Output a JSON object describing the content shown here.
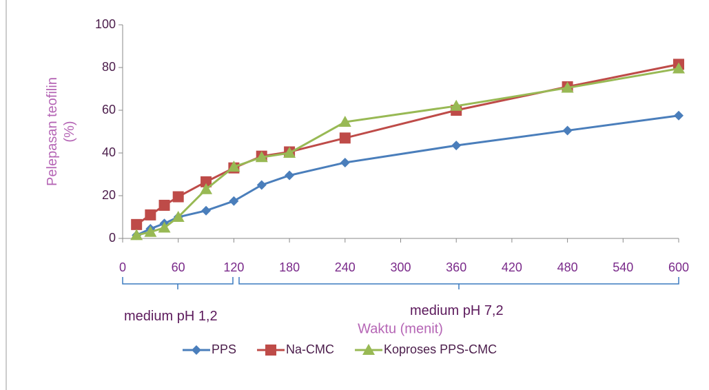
{
  "chart_data": {
    "type": "line",
    "x_label": "Waktu (menit)",
    "y_label": "Pelepasan teofilin (%)",
    "xlim": [
      0,
      600
    ],
    "xticks": [
      0,
      60,
      120,
      180,
      240,
      300,
      360,
      420,
      480,
      540,
      600
    ],
    "ylim": [
      0,
      100
    ],
    "yticks": [
      0,
      20,
      40,
      60,
      80,
      100
    ],
    "annotations": [
      "medium pH 1,2",
      "medium pH 7,2"
    ],
    "legend": "bottom",
    "x": [
      15,
      30,
      45,
      60,
      90,
      120,
      150,
      180,
      240,
      360,
      480,
      600
    ],
    "series": [
      {
        "name": "PPS",
        "color": "#4a7ebb",
        "marker": "diamond",
        "values": [
          1.5,
          4.5,
          7,
          10,
          13,
          17.5,
          25,
          29.5,
          35.5,
          43.5,
          50.5,
          57.5
        ]
      },
      {
        "name": "Na-CMC",
        "color": "#be4b48",
        "marker": "square",
        "values": [
          6.5,
          11,
          15.5,
          19.5,
          26.5,
          33,
          38.5,
          40.5,
          47,
          60,
          71,
          81.5
        ]
      },
      {
        "name": "Koproses PPS-CMC",
        "color": "#98b954",
        "marker": "triangle",
        "values": [
          1.5,
          3,
          5,
          10,
          23,
          33.5,
          38,
          40,
          54.5,
          62,
          70.5,
          79.5
        ]
      }
    ]
  }
}
